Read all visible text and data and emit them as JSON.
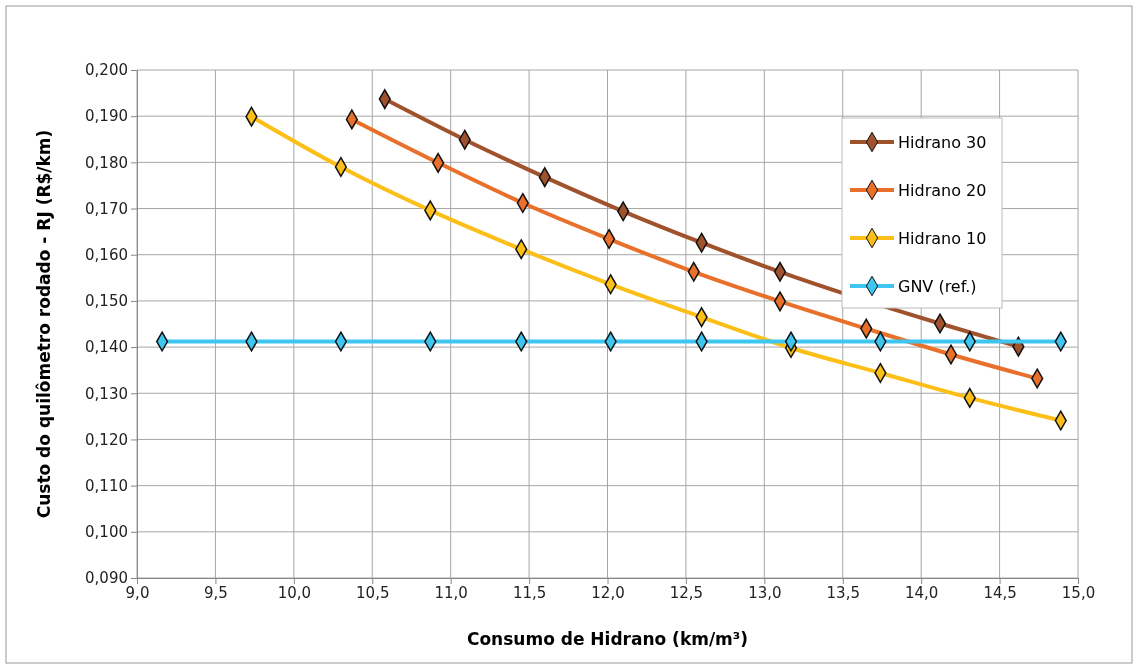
{
  "chart_data": {
    "type": "line",
    "xlabel": "Consumo de Hidrano (km/m³)",
    "ylabel": "Custo do quilômetro rodado - RJ (R$/km)",
    "xlim": [
      9.0,
      15.0
    ],
    "xticks": [
      {
        "value": 9.0,
        "label": "9,0"
      },
      {
        "value": 9.5,
        "label": "9,5"
      },
      {
        "value": 10.0,
        "label": "10,0"
      },
      {
        "value": 10.5,
        "label": "10,5"
      },
      {
        "value": 11.0,
        "label": "11,0"
      },
      {
        "value": 11.5,
        "label": "11,5"
      },
      {
        "value": 12.0,
        "label": "12,0"
      },
      {
        "value": 12.5,
        "label": "12,5"
      },
      {
        "value": 13.0,
        "label": "13,0"
      },
      {
        "value": 13.5,
        "label": "13,5"
      },
      {
        "value": 14.0,
        "label": "14,0"
      },
      {
        "value": 14.5,
        "label": "14,5"
      },
      {
        "value": 15.0,
        "label": "15,0"
      }
    ],
    "ylim": [
      0.09,
      0.2
    ],
    "yticks": [
      {
        "value": 0.09,
        "label": "0,090"
      },
      {
        "value": 0.1,
        "label": "0,100"
      },
      {
        "value": 0.11,
        "label": "0,110"
      },
      {
        "value": 0.12,
        "label": "0,120"
      },
      {
        "value": 0.13,
        "label": "0,130"
      },
      {
        "value": 0.14,
        "label": "0,140"
      },
      {
        "value": 0.15,
        "label": "0,150"
      },
      {
        "value": 0.16,
        "label": "0,160"
      },
      {
        "value": 0.17,
        "label": "0,170"
      },
      {
        "value": 0.18,
        "label": "0,180"
      },
      {
        "value": 0.19,
        "label": "0,190"
      },
      {
        "value": 0.2,
        "label": "0,200"
      }
    ],
    "grid": true,
    "legend": "top right",
    "marker": "diamond",
    "line_style": "solid",
    "series": [
      {
        "name": "Hidrano 30",
        "color": "#a0522d",
        "x": [
          10.58,
          11.09,
          11.6,
          12.1,
          12.6,
          13.1,
          13.62,
          14.12,
          14.62
        ],
        "values": [
          0.1937,
          0.1849,
          0.1768,
          0.1694,
          0.1626,
          0.1563,
          null,
          0.1451,
          0.1401
        ]
      },
      {
        "name": "Hidrano 20",
        "color": "#e8702a",
        "x": [
          10.37,
          10.92,
          11.46,
          12.01,
          12.55,
          13.1,
          13.65,
          14.19,
          14.74
        ],
        "values": [
          0.1893,
          0.1799,
          0.1712,
          0.1634,
          0.1563,
          0.1499,
          0.144,
          0.1384,
          0.1332
        ]
      },
      {
        "name": "Hidrano 10",
        "color": "#fcbf18",
        "x": [
          9.73,
          10.3,
          10.87,
          11.45,
          12.02,
          12.6,
          13.17,
          13.74,
          14.31,
          14.89
        ],
        "values": [
          0.1899,
          0.179,
          0.1696,
          0.1612,
          0.1536,
          0.1465,
          0.1398,
          0.1344,
          0.129,
          0.1241
        ]
      },
      {
        "name": "GNV (ref.)",
        "color": "#3ec6f0",
        "x": [
          9.16,
          9.73,
          10.3,
          10.87,
          11.45,
          12.02,
          12.6,
          13.17,
          13.74,
          14.31,
          14.89
        ],
        "values": [
          0.1412,
          0.1412,
          0.1412,
          0.1412,
          0.1412,
          0.1412,
          0.1412,
          0.1412,
          0.1412,
          0.1412,
          0.1412
        ]
      }
    ]
  }
}
